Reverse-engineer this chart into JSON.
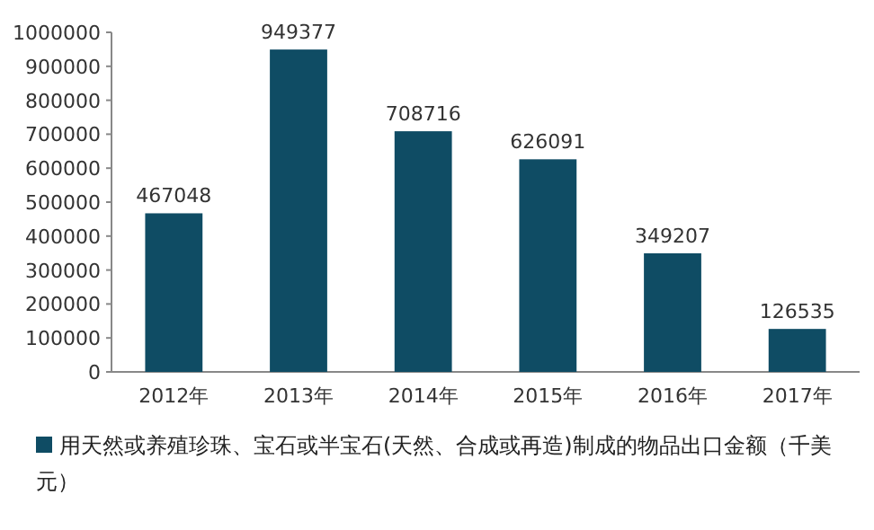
{
  "chart_data": {
    "type": "bar",
    "categories": [
      "2012年",
      "2013年",
      "2014年",
      "2015年",
      "2016年",
      "2017年"
    ],
    "series": [
      {
        "name": "用天然或养殖珍珠、宝石或半宝石(天然、合成或再造)制成的物品出口金额（千美元）",
        "color": "#0f4c64",
        "values": [
          467048,
          949377,
          708716,
          626091,
          349207,
          126535
        ]
      }
    ],
    "ylim": [
      0,
      1000000
    ],
    "yticks": [
      0,
      100000,
      200000,
      300000,
      400000,
      500000,
      600000,
      700000,
      800000,
      900000,
      1000000
    ],
    "data_labels": true,
    "legend": "bottom",
    "grid": false
  }
}
